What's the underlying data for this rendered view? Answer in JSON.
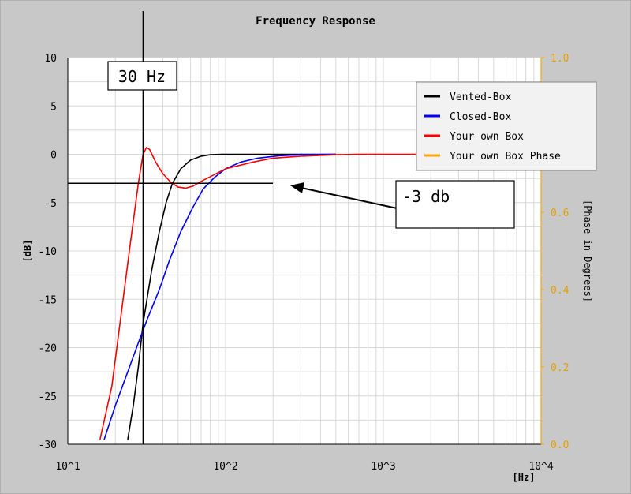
{
  "chart_data": {
    "type": "line",
    "title": "Frequency Response",
    "xlabel": "[Hz]",
    "ylabel": "[dB]",
    "y2label": "[Phase in Degrees]",
    "x_scale": "log",
    "xlim": [
      10,
      10000
    ],
    "ylim": [
      -30,
      10
    ],
    "y2lim": [
      0.0,
      1.0
    ],
    "x_ticks": [
      "10^1",
      "10^2",
      "10^3",
      "10^4"
    ],
    "x_tick_values": [
      10,
      100,
      1000,
      10000
    ],
    "y_ticks": [
      10,
      5,
      0,
      -5,
      -10,
      -15,
      -20,
      -25,
      -30
    ],
    "y2_ticks": [
      "1.0",
      "0.8",
      "0.6",
      "0.4",
      "0.2",
      "0.0"
    ],
    "y2_tick_values": [
      1.0,
      0.8,
      0.6,
      0.4,
      0.2,
      0.0
    ],
    "grid": true,
    "legend_position": "top-right",
    "series": [
      {
        "name": "Vented-Box",
        "color": "#000000",
        "points": [
          [
            24,
            -29.5
          ],
          [
            26,
            -26
          ],
          [
            28,
            -22
          ],
          [
            30,
            -17.5
          ],
          [
            34,
            -12
          ],
          [
            38,
            -8
          ],
          [
            42,
            -5
          ],
          [
            46,
            -3
          ],
          [
            52,
            -1.5
          ],
          [
            60,
            -0.6
          ],
          [
            70,
            -0.2
          ],
          [
            80,
            -0.05
          ],
          [
            95,
            0
          ],
          [
            200,
            0
          ],
          [
            500,
            0
          ]
        ]
      },
      {
        "name": "Closed-Box",
        "color": "#0000ff",
        "points": [
          [
            17,
            -29.5
          ],
          [
            20,
            -26
          ],
          [
            24,
            -22.5
          ],
          [
            28,
            -19.5
          ],
          [
            32,
            -17
          ],
          [
            38,
            -14
          ],
          [
            44,
            -11
          ],
          [
            52,
            -8
          ],
          [
            62,
            -5.5
          ],
          [
            72,
            -3.6
          ],
          [
            85,
            -2.4
          ],
          [
            100,
            -1.5
          ],
          [
            125,
            -0.8
          ],
          [
            160,
            -0.4
          ],
          [
            220,
            -0.15
          ],
          [
            300,
            -0.05
          ],
          [
            500,
            0
          ]
        ]
      },
      {
        "name": "Your own Box",
        "color": "#ff0000",
        "points": [
          [
            16,
            -29.5
          ],
          [
            19,
            -24
          ],
          [
            22,
            -16
          ],
          [
            25,
            -9
          ],
          [
            28,
            -3
          ],
          [
            30,
            0
          ],
          [
            31.5,
            0.7
          ],
          [
            33,
            0.5
          ],
          [
            36,
            -0.8
          ],
          [
            40,
            -2
          ],
          [
            45,
            -2.9
          ],
          [
            50,
            -3.4
          ],
          [
            56,
            -3.5
          ],
          [
            62,
            -3.3
          ],
          [
            70,
            -2.8
          ],
          [
            85,
            -2.1
          ],
          [
            100,
            -1.5
          ],
          [
            150,
            -0.8
          ],
          [
            200,
            -0.4
          ],
          [
            300,
            -0.2
          ],
          [
            500,
            -0.05
          ],
          [
            700,
            0
          ],
          [
            2000,
            0
          ]
        ]
      },
      {
        "name": "Your own Box Phase",
        "color": "#ffa500",
        "points": []
      }
    ],
    "annotations": [
      {
        "text": "30 Hz",
        "x": 30,
        "kind": "vertical-marker"
      },
      {
        "text": "-3 db",
        "y": -3,
        "kind": "horizontal-marker"
      }
    ]
  }
}
